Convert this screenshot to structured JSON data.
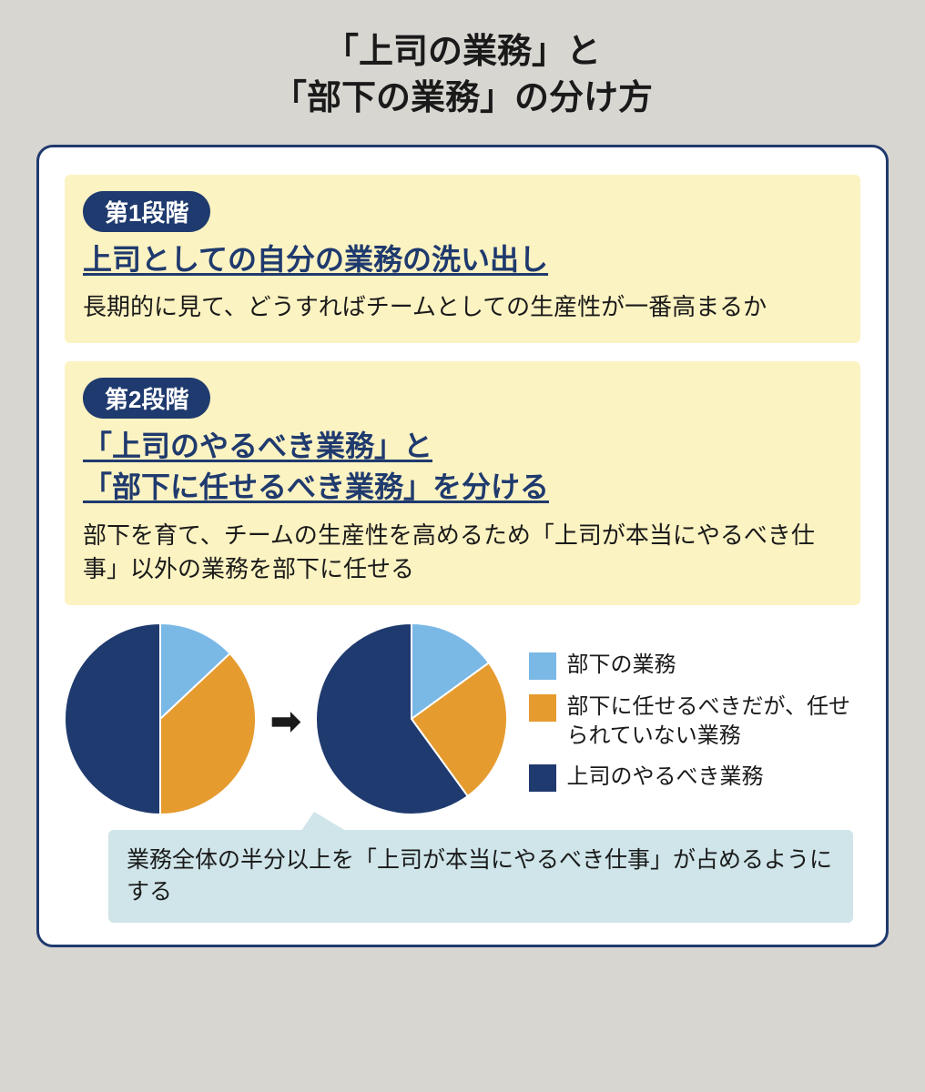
{
  "title_line1": "「上司の業務」と",
  "title_line2": "「部下の業務」の分け方",
  "panel_border_color": "#1f3a6e",
  "panel_bg": "#ffffff",
  "body_bg": "#d8d6d1",
  "stage1": {
    "badge": "第1段階",
    "heading": "上司としての自分の業務の洗い出し",
    "desc": "長期的に見て、どうすればチームとしての生産性が一番高まるか",
    "box_bg": "#fcf3c2",
    "badge_bg": "#1f3a6e",
    "heading_color": "#1f3a6e"
  },
  "stage2": {
    "badge": "第2段階",
    "heading_line1": "「上司のやるべき業務」と",
    "heading_line2": "「部下に任せるべき業務」を分ける",
    "desc": "部下を育て、チームの生産性を高めるため「上司が本当にやるべき仕事」以外の業務を部下に任せる",
    "box_bg": "#fcf3c2"
  },
  "colors": {
    "subordinate": "#7ab8e6",
    "should_delegate": "#e69b2f",
    "supervisor": "#1f3a6e"
  },
  "pie_before": {
    "type": "pie",
    "radius": 105,
    "slices": [
      {
        "key": "subordinate",
        "value": 13,
        "color": "#7ab8e6"
      },
      {
        "key": "should_delegate",
        "value": 37,
        "color": "#e69b2f"
      },
      {
        "key": "supervisor",
        "value": 50,
        "color": "#1f3a6e"
      }
    ]
  },
  "pie_after": {
    "type": "pie",
    "radius": 105,
    "slices": [
      {
        "key": "subordinate",
        "value": 15,
        "color": "#7ab8e6"
      },
      {
        "key": "should_delegate",
        "value": 25,
        "color": "#e69b2f"
      },
      {
        "key": "supervisor",
        "value": 60,
        "color": "#1f3a6e"
      }
    ]
  },
  "arrow_glyph": "➡",
  "legend": [
    {
      "color": "#7ab8e6",
      "label": "部下の業務"
    },
    {
      "color": "#e69b2f",
      "label": "部下に任せるべきだが、任せられていない業務"
    },
    {
      "color": "#1f3a6e",
      "label": "上司のやるべき業務"
    }
  ],
  "callout": {
    "text": "業務全体の半分以上を「上司が本当にやるべき仕事」が占めるようにする",
    "bg": "#cfe5e9"
  }
}
